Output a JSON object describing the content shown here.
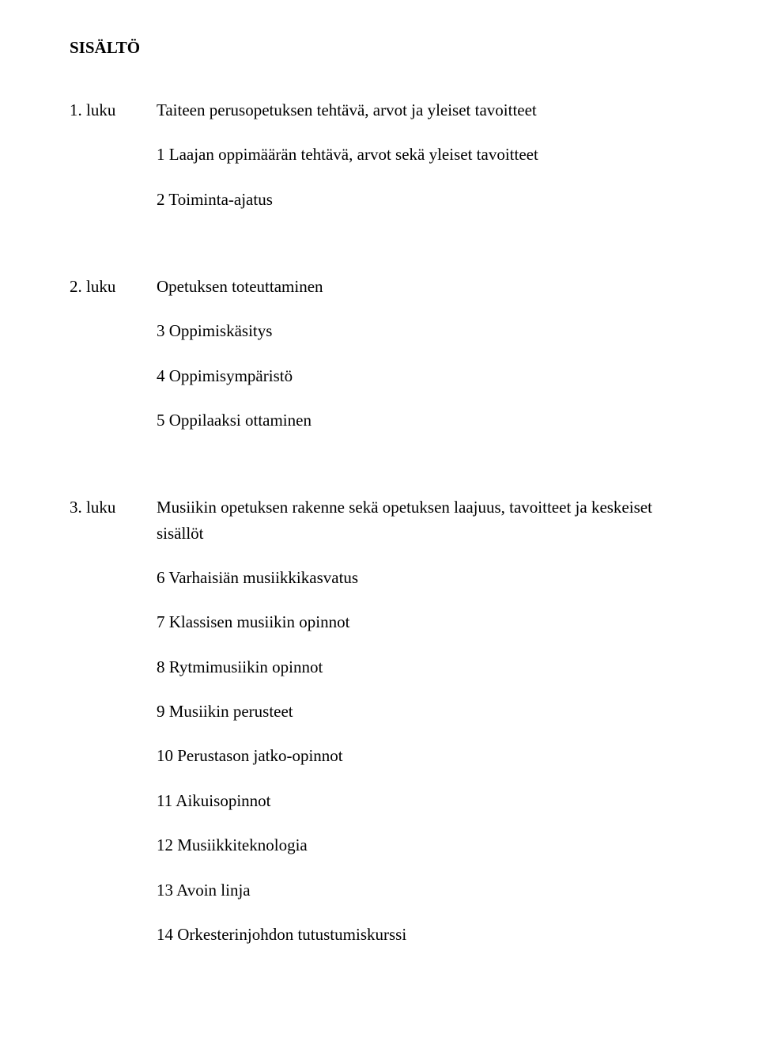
{
  "title": "SISÄLTÖ",
  "chapters": [
    {
      "label": "1. luku",
      "heading": "Taiteen perusopetuksen tehtävä, arvot ja yleiset tavoitteet",
      "items": [
        "1 Laajan oppimäärän tehtävä, arvot sekä yleiset tavoitteet",
        "2 Toiminta-ajatus"
      ]
    },
    {
      "label": "2. luku",
      "heading": "Opetuksen toteuttaminen",
      "items": [
        "3 Oppimiskäsitys",
        "4 Oppimisympäristö",
        "5 Oppilaaksi ottaminen"
      ]
    },
    {
      "label": "3. luku",
      "heading_line1": "Musiikin opetuksen rakenne sekä opetuksen laajuus, tavoitteet ja keskeiset",
      "heading_line2": "sisällöt",
      "items": [
        "6 Varhaisiän musiikkikasvatus",
        "7 Klassisen musiikin opinnot",
        "8 Rytmimusiikin opinnot",
        "9 Musiikin perusteet",
        "10 Perustason jatko-opinnot",
        "11 Aikuisopinnot",
        "12 Musiikkiteknologia",
        "13 Avoin linja",
        "14 Orkesterinjohdon tutustumiskurssi"
      ]
    }
  ]
}
